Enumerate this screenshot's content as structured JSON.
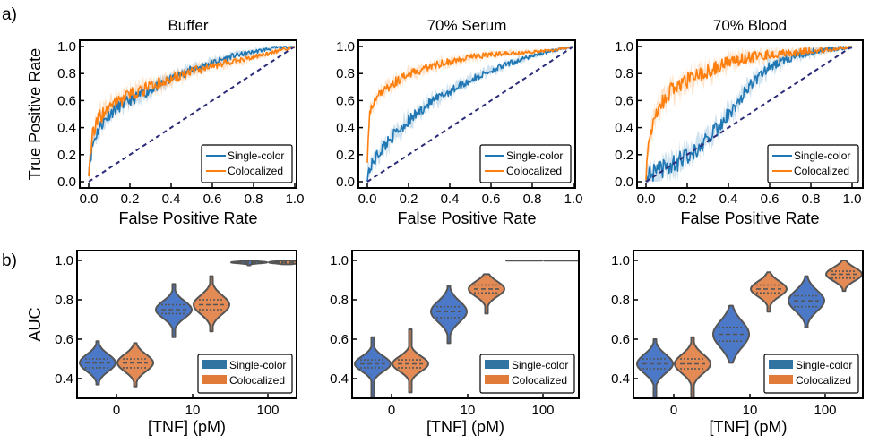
{
  "figure": {
    "panel_labels": [
      "a)",
      "b)"
    ]
  },
  "colors": {
    "single_color_line": "#1f77b4",
    "colocalized_line": "#ff7f0e",
    "single_color_violin": "#4c78c8",
    "colocalized_violin": "#e38a55",
    "diagonal": "#2b2b7a",
    "violin_edge": "#555555"
  },
  "chart_data": [
    {
      "type": "line",
      "panel": "a",
      "title": "Buffer",
      "xlabel": "False Positive Rate",
      "ylabel": "True Positive Rate",
      "xlim": [
        0,
        1
      ],
      "ylim": [
        0,
        1
      ],
      "xticks": [
        "0.0",
        "0.2",
        "0.4",
        "0.6",
        "0.8",
        "1.0"
      ],
      "yticks": [
        "0.0",
        "0.2",
        "0.4",
        "0.6",
        "0.8",
        "1.0"
      ],
      "legend": {
        "position": "bottom-right",
        "entries": [
          "Single-color",
          "Colocalized"
        ]
      },
      "diagonal": {
        "x": [
          0,
          1
        ],
        "y": [
          0,
          1
        ],
        "style": "dashed"
      },
      "series": [
        {
          "name": "Single-color",
          "x": [
            0,
            0.02,
            0.05,
            0.1,
            0.15,
            0.2,
            0.3,
            0.4,
            0.5,
            0.6,
            0.7,
            0.8,
            0.9,
            1.0
          ],
          "y": [
            0.1,
            0.28,
            0.4,
            0.5,
            0.56,
            0.6,
            0.68,
            0.76,
            0.83,
            0.88,
            0.93,
            0.96,
            0.99,
            1.0
          ],
          "noise": 0.05
        },
        {
          "name": "Colocalized",
          "x": [
            0,
            0.02,
            0.05,
            0.1,
            0.15,
            0.2,
            0.3,
            0.4,
            0.5,
            0.6,
            0.7,
            0.8,
            0.9,
            1.0
          ],
          "y": [
            0.1,
            0.35,
            0.47,
            0.55,
            0.6,
            0.64,
            0.7,
            0.76,
            0.81,
            0.86,
            0.89,
            0.92,
            0.96,
            1.0
          ],
          "noise": 0.06
        }
      ]
    },
    {
      "type": "line",
      "panel": "a",
      "title": "70% Serum",
      "xlabel": "False Positive Rate",
      "ylabel": "",
      "xlim": [
        0,
        1
      ],
      "ylim": [
        0,
        1
      ],
      "xticks": [
        "0.0",
        "0.2",
        "0.4",
        "0.6",
        "0.8",
        "1.0"
      ],
      "yticks": [
        "0.0",
        "0.2",
        "0.4",
        "0.6",
        "0.8",
        "1.0"
      ],
      "legend": {
        "position": "bottom-right",
        "entries": [
          "Single-color",
          "Colocalized"
        ]
      },
      "diagonal": {
        "x": [
          0,
          1
        ],
        "y": [
          0,
          1
        ],
        "style": "dashed"
      },
      "series": [
        {
          "name": "Single-color",
          "x": [
            0,
            0.02,
            0.05,
            0.1,
            0.15,
            0.2,
            0.3,
            0.4,
            0.5,
            0.6,
            0.7,
            0.8,
            0.9,
            1.0
          ],
          "y": [
            0.05,
            0.12,
            0.2,
            0.3,
            0.38,
            0.45,
            0.58,
            0.67,
            0.75,
            0.82,
            0.88,
            0.93,
            0.97,
            1.0
          ],
          "noise": 0.05
        },
        {
          "name": "Colocalized",
          "x": [
            0,
            0.01,
            0.03,
            0.06,
            0.1,
            0.15,
            0.2,
            0.3,
            0.4,
            0.5,
            0.6,
            0.7,
            0.8,
            0.9,
            1.0
          ],
          "y": [
            0.18,
            0.52,
            0.58,
            0.64,
            0.7,
            0.75,
            0.79,
            0.85,
            0.89,
            0.92,
            0.94,
            0.95,
            0.96,
            0.97,
            1.0
          ],
          "noise": 0.04
        }
      ]
    },
    {
      "type": "line",
      "panel": "a",
      "title": "70% Blood",
      "xlabel": "False Positive Rate",
      "ylabel": "",
      "xlim": [
        0,
        1
      ],
      "ylim": [
        0,
        1
      ],
      "xticks": [
        "0.0",
        "0.2",
        "0.4",
        "0.6",
        "0.8",
        "1.0"
      ],
      "yticks": [
        "0.0",
        "0.2",
        "0.4",
        "0.6",
        "0.8",
        "1.0"
      ],
      "legend": {
        "position": "bottom-right",
        "entries": [
          "Single-color",
          "Colocalized"
        ]
      },
      "diagonal": {
        "x": [
          0,
          1
        ],
        "y": [
          0,
          1
        ],
        "style": "dashed"
      },
      "series": [
        {
          "name": "Single-color",
          "x": [
            0,
            0.05,
            0.1,
            0.15,
            0.2,
            0.25,
            0.3,
            0.35,
            0.4,
            0.45,
            0.5,
            0.55,
            0.6,
            0.7,
            0.8,
            0.9,
            1.0
          ],
          "y": [
            0.02,
            0.06,
            0.1,
            0.14,
            0.19,
            0.25,
            0.32,
            0.4,
            0.5,
            0.6,
            0.7,
            0.78,
            0.85,
            0.92,
            0.96,
            0.98,
            1.0
          ],
          "noise": 0.08
        },
        {
          "name": "Colocalized",
          "x": [
            0,
            0.01,
            0.03,
            0.05,
            0.08,
            0.1,
            0.15,
            0.2,
            0.3,
            0.4,
            0.5,
            0.6,
            0.7,
            0.8,
            0.9,
            1.0
          ],
          "y": [
            0.08,
            0.25,
            0.4,
            0.5,
            0.58,
            0.64,
            0.7,
            0.75,
            0.82,
            0.88,
            0.92,
            0.94,
            0.95,
            0.97,
            0.98,
            1.0
          ],
          "noise": 0.07
        }
      ]
    },
    {
      "type": "violin",
      "panel": "b",
      "title": "",
      "xlabel": "[TNF] (pM)",
      "ylabel": "AUC",
      "categories": [
        "0",
        "10",
        "100"
      ],
      "ylim": [
        0.3,
        1.05
      ],
      "yticks": [
        "0.4",
        "0.6",
        "0.8",
        "1.0"
      ],
      "legend": {
        "position": "bottom-right",
        "entries": [
          "Single-color",
          "Colocalized"
        ]
      },
      "series": [
        {
          "name": "Single-color",
          "median": [
            0.48,
            0.75,
            0.99
          ],
          "q1": [
            0.455,
            0.73,
            0.988
          ],
          "q3": [
            0.5,
            0.775,
            0.993
          ],
          "min": [
            0.37,
            0.61,
            0.975
          ],
          "max": [
            0.59,
            0.88,
            1.0
          ]
        },
        {
          "name": "Colocalized",
          "median": [
            0.48,
            0.775,
            0.99
          ],
          "q1": [
            0.455,
            0.75,
            0.988
          ],
          "q3": [
            0.5,
            0.8,
            0.994
          ],
          "min": [
            0.36,
            0.64,
            0.98
          ],
          "max": [
            0.58,
            0.92,
            1.0
          ]
        }
      ]
    },
    {
      "type": "violin",
      "panel": "b",
      "title": "",
      "xlabel": "[TNF] (pM)",
      "ylabel": "",
      "categories": [
        "0",
        "10",
        "100"
      ],
      "ylim": [
        0.3,
        1.05
      ],
      "yticks": [
        "0.4",
        "0.6",
        "0.8",
        "1.0"
      ],
      "legend": {
        "position": "bottom-right",
        "entries": [
          "Single-color",
          "Colocalized"
        ]
      },
      "series": [
        {
          "name": "Single-color",
          "median": [
            0.475,
            0.74,
            1.0
          ],
          "q1": [
            0.455,
            0.71,
            1.0
          ],
          "q3": [
            0.495,
            0.765,
            1.0
          ],
          "min": [
            0.3,
            0.58,
            0.999
          ],
          "max": [
            0.61,
            0.87,
            1.0
          ]
        },
        {
          "name": "Colocalized",
          "median": [
            0.475,
            0.855,
            1.0
          ],
          "q1": [
            0.455,
            0.835,
            1.0
          ],
          "q3": [
            0.495,
            0.875,
            1.0
          ],
          "min": [
            0.33,
            0.73,
            0.999
          ],
          "max": [
            0.65,
            0.93,
            1.0
          ]
        }
      ]
    },
    {
      "type": "violin",
      "panel": "b",
      "title": "",
      "xlabel": "[TNF] (pM)",
      "ylabel": "",
      "categories": [
        "0",
        "10",
        "100"
      ],
      "ylim": [
        0.3,
        1.05
      ],
      "yticks": [
        "0.4",
        "0.6",
        "0.8",
        "1.0"
      ],
      "legend": {
        "position": "bottom-right",
        "entries": [
          "Single-color",
          "Colocalized"
        ]
      },
      "series": [
        {
          "name": "Single-color",
          "median": [
            0.475,
            0.625,
            0.795
          ],
          "q1": [
            0.45,
            0.59,
            0.765
          ],
          "q3": [
            0.5,
            0.66,
            0.82
          ],
          "min": [
            0.3,
            0.48,
            0.66
          ],
          "max": [
            0.6,
            0.77,
            0.92
          ]
        },
        {
          "name": "Colocalized",
          "median": [
            0.475,
            0.855,
            0.93
          ],
          "q1": [
            0.45,
            0.835,
            0.91
          ],
          "q3": [
            0.5,
            0.875,
            0.945
          ],
          "min": [
            0.3,
            0.74,
            0.845
          ],
          "max": [
            0.61,
            0.94,
            1.0
          ]
        }
      ]
    }
  ]
}
